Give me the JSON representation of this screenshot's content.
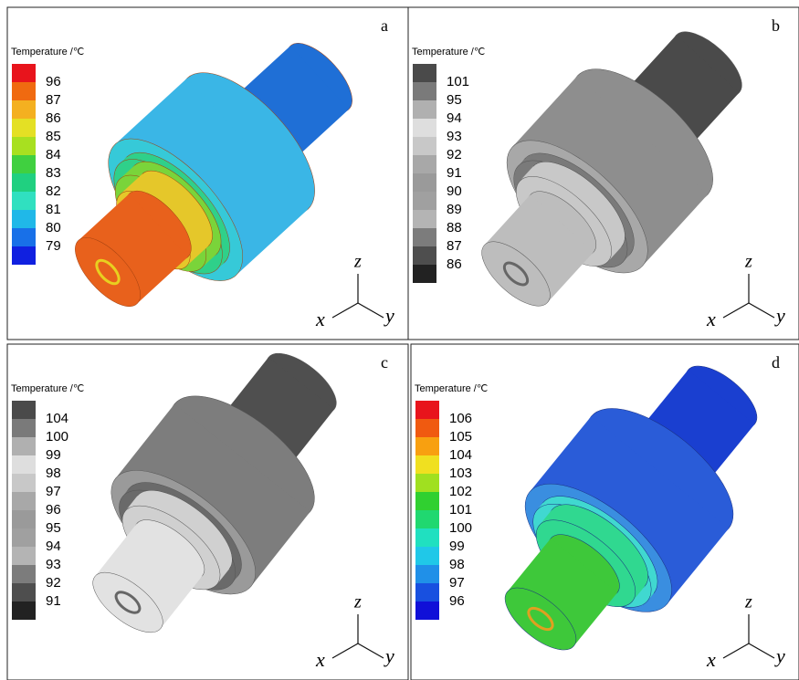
{
  "panels": [
    {
      "label": "a",
      "legend": {
        "title": "Temperature /℃",
        "labels": [
          "96",
          "87",
          "86",
          "85",
          "84",
          "83",
          "82",
          "81",
          "80",
          "79"
        ],
        "colors": [
          "#e8141c",
          "#f06a10",
          "#f4b020",
          "#e4e024",
          "#a8e020",
          "#40d040",
          "#20d080",
          "#30e0c0",
          "#20b8e8",
          "#1870e8",
          "#1020e0"
        ]
      },
      "axes": {
        "z": "z",
        "x": "x",
        "y": "y"
      }
    },
    {
      "label": "b",
      "legend": {
        "title": "Temperature /℃",
        "labels": [
          "101",
          "95",
          "94",
          "93",
          "92",
          "91",
          "90",
          "89",
          "88",
          "87",
          "86"
        ],
        "colors": [
          "#4a4a4a",
          "#7a7a7a",
          "#b0b0b0",
          "#dedede",
          "#c8c8c8",
          "#a8a8a8",
          "#9a9a9a",
          "#a0a0a0",
          "#b4b4b4",
          "#7c7c7c",
          "#4e4e4e",
          "#222222"
        ]
      },
      "axes": {
        "z": "z",
        "x": "x",
        "y": "y"
      }
    },
    {
      "label": "c",
      "legend": {
        "title": "Temperature /℃",
        "labels": [
          "104",
          "100",
          "99",
          "98",
          "97",
          "96",
          "95",
          "94",
          "93",
          "92",
          "91"
        ],
        "colors": [
          "#4a4a4a",
          "#7a7a7a",
          "#b0b0b0",
          "#dedede",
          "#c8c8c8",
          "#a8a8a8",
          "#9a9a9a",
          "#a0a0a0",
          "#b4b4b4",
          "#7c7c7c",
          "#4e4e4e",
          "#222222"
        ]
      },
      "axes": {
        "z": "z",
        "x": "x",
        "y": "y"
      }
    },
    {
      "label": "d",
      "legend": {
        "title": "Temperature /℃",
        "labels": [
          "106",
          "105",
          "104",
          "103",
          "102",
          "101",
          "100",
          "99",
          "98",
          "97",
          "96"
        ],
        "colors": [
          "#e8141c",
          "#f05a10",
          "#f8a010",
          "#f0e020",
          "#a0e020",
          "#30d030",
          "#20d870",
          "#20e0c0",
          "#20c8e8",
          "#2090e8",
          "#1850e0",
          "#1010d8"
        ]
      },
      "axes": {
        "z": "z",
        "x": "x",
        "y": "y"
      }
    }
  ]
}
